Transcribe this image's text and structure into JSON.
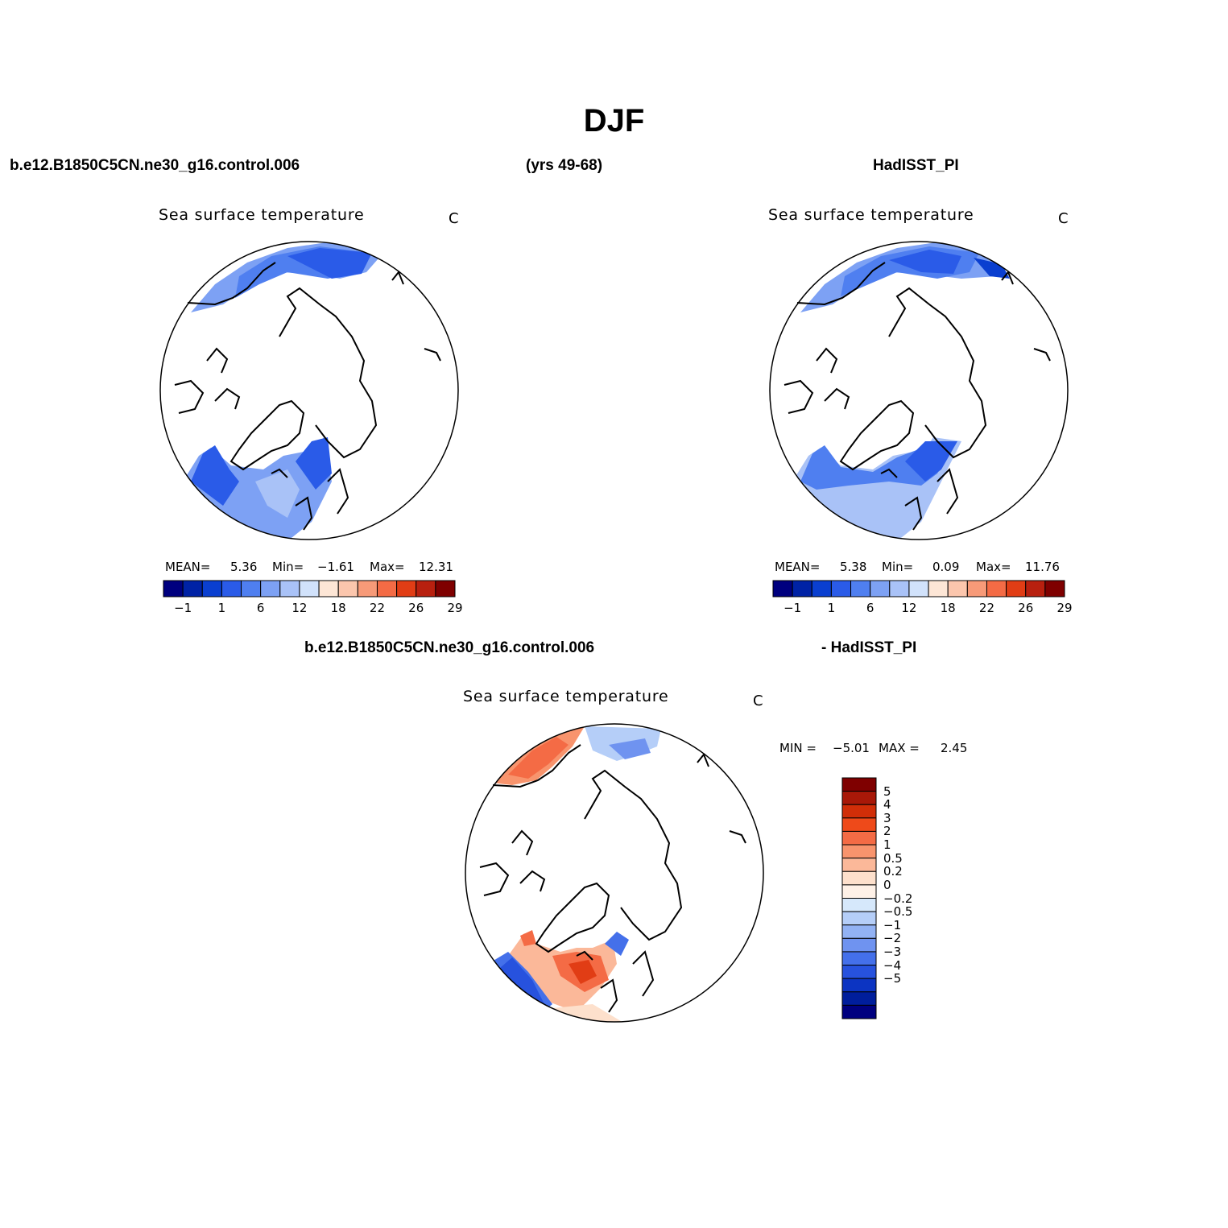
{
  "figure": {
    "title": "DJF",
    "case_name": "b.e12.B1850C5CN.ne30_g16.control.006",
    "years": "(yrs 49-68)",
    "obs_name": "HadISST_PI",
    "diff_case_name": "b.e12.B1850C5CN.ne30_g16.control.006",
    "diff_obs_name": "- HadISST_PI"
  },
  "panels": {
    "model": {
      "title": "Sea surface temperature",
      "units": "C",
      "mean_label": "MEAN=",
      "mean_value": "5.36",
      "min_label": "Min=",
      "min_value": "−1.61",
      "max_label": "Max=",
      "max_value": "12.31"
    },
    "obs": {
      "title": "Sea surface temperature",
      "units": "C",
      "mean_label": "MEAN=",
      "mean_value": "5.38",
      "min_label": "Min=",
      "min_value": "0.09",
      "max_label": "Max=",
      "max_value": "11.76"
    },
    "diff": {
      "title": "Sea surface temperature",
      "units": "C",
      "min_label": "MIN =",
      "min_value": "−5.01",
      "max_label": "MAX =",
      "max_value": "2.45"
    }
  },
  "colorbars": {
    "main": {
      "colors": [
        "#00007f",
        "#0022a5",
        "#0a3fd0",
        "#2a5be8",
        "#4f7ff0",
        "#7da1f4",
        "#a9c2f7",
        "#d1e2fb",
        "#fde6d6",
        "#fbc6ad",
        "#f79a78",
        "#f46b45",
        "#e13d15",
        "#b8200f",
        "#7f0000"
      ],
      "tick_labels": [
        "−1",
        "1",
        "6",
        "12",
        "18",
        "22",
        "26",
        "29"
      ]
    },
    "diff": {
      "colors_top_to_bottom": [
        "#7f0000",
        "#a81808",
        "#d12e08",
        "#ee4a1a",
        "#f46b45",
        "#f8946d",
        "#fbb899",
        "#fde0cc",
        "#fef1e7",
        "#d6e8fb",
        "#b5cef8",
        "#92b2f4",
        "#6f93f0",
        "#4470ea",
        "#2752de",
        "#0c34c2",
        "#001e9c",
        "#00007f"
      ],
      "labels_top_to_bottom": [
        "5",
        "4",
        "3",
        "2",
        "1",
        "0.5",
        "0.2",
        "0",
        "−0.2",
        "−0.5",
        "−1",
        "−2",
        "−3",
        "−4",
        "−5"
      ]
    }
  }
}
